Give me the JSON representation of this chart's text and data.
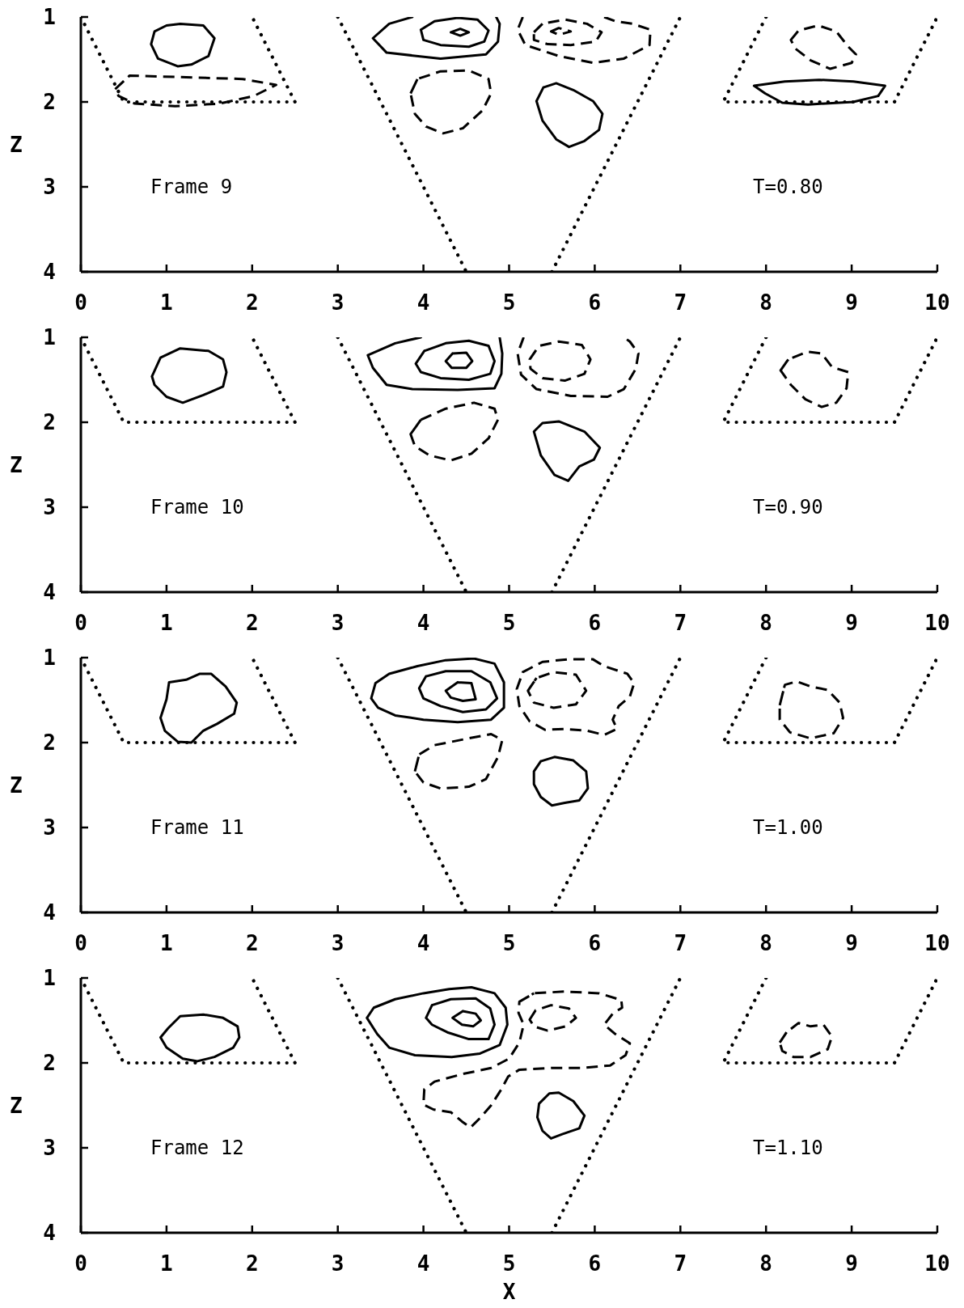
{
  "chart_data": [
    {
      "type": "line",
      "ylabel": "Z",
      "xlim": [
        0,
        10
      ],
      "xticks": [
        0,
        1,
        2,
        3,
        4,
        5,
        6,
        7,
        8,
        9,
        10
      ],
      "ylim": [
        4,
        1
      ],
      "yticks": [
        1,
        2,
        3,
        4
      ],
      "marker": "none",
      "annotations": [
        "Frame 9",
        "T=0.80"
      ],
      "series": [
        {
          "x": [
            0,
            0.5,
            2.5,
            2
          ],
          "values": [
            1,
            2,
            2,
            1
          ],
          "line_style": "dotted",
          "color": "#000000"
        },
        {
          "x": [
            3,
            4.5
          ],
          "values": [
            1,
            4
          ],
          "line_style": "dotted",
          "color": "#000000"
        },
        {
          "x": [
            5.5,
            7
          ],
          "values": [
            4,
            1
          ],
          "line_style": "dotted",
          "color": "#000000"
        },
        {
          "x": [
            8,
            7.5,
            9.5,
            10
          ],
          "values": [
            1,
            2,
            2,
            1
          ],
          "line_style": "dotted",
          "color": "#000000"
        },
        {
          "x": [
            1.16,
            1.43,
            1.56,
            1.49,
            1.29,
            1.13,
            0.9,
            0.82,
            0.86,
            1.0,
            1.16,
            1.43
          ],
          "values": [
            1.08,
            1.1,
            1.25,
            1.46,
            1.56,
            1.58,
            1.49,
            1.32,
            1.17,
            1.1,
            1.08,
            1.1
          ],
          "line_style": "solid",
          "color": "#000000"
        },
        {
          "x": [
            0.4,
            0.57,
            1.23,
            1.89,
            2.28,
            2.02,
            1.62,
            1.1,
            0.63,
            0.44,
            0.4,
            0.57
          ],
          "values": [
            1.85,
            1.69,
            1.71,
            1.73,
            1.8,
            1.93,
            2.02,
            2.05,
            2.02,
            1.93,
            1.85,
            1.69
          ],
          "line_style": "dashed",
          "color": "#000000"
        },
        {
          "x": [
            3.87,
            3.6,
            3.41,
            3.57,
            4.2,
            4.73,
            4.87,
            4.89,
            4.85
          ],
          "values": [
            1.0,
            1.08,
            1.25,
            1.42,
            1.49,
            1.44,
            1.29,
            1.08,
            1.0
          ],
          "line_style": "solid",
          "color": "#000000"
        },
        {
          "x": [
            3.97,
            4.13,
            4.4,
            4.63,
            4.76,
            4.71,
            4.53,
            4.2,
            4.0,
            3.97,
            4.13
          ],
          "values": [
            1.15,
            1.05,
            1.01,
            1.03,
            1.16,
            1.29,
            1.35,
            1.33,
            1.27,
            1.15,
            1.05
          ],
          "line_style": "solid",
          "color": "#000000"
        },
        {
          "x": [
            4.32,
            4.43,
            4.53,
            4.43,
            4.32,
            4.43
          ],
          "values": [
            1.18,
            1.14,
            1.18,
            1.22,
            1.18,
            1.14
          ],
          "line_style": "solid",
          "color": "#000000"
        },
        {
          "x": [
            5.16,
            5.1,
            5.19,
            5.58,
            5.98,
            6.34,
            6.64,
            6.65,
            6.44,
            6.24,
            6.11
          ],
          "values": [
            1.0,
            1.15,
            1.33,
            1.46,
            1.54,
            1.49,
            1.33,
            1.15,
            1.08,
            1.05,
            1.0
          ],
          "line_style": "dashed",
          "color": "#000000"
        },
        {
          "x": [
            5.29,
            5.39,
            5.65,
            5.91,
            6.08,
            6.01,
            5.72,
            5.45,
            5.29,
            5.29,
            5.39
          ],
          "values": [
            1.18,
            1.08,
            1.03,
            1.08,
            1.18,
            1.29,
            1.33,
            1.32,
            1.27,
            1.18,
            1.08
          ],
          "line_style": "dashed",
          "color": "#000000"
        },
        {
          "x": [
            5.49,
            5.58,
            5.72,
            5.58,
            5.49,
            5.58
          ],
          "values": [
            1.17,
            1.13,
            1.17,
            1.21,
            1.17,
            1.13
          ],
          "line_style": "dashed",
          "color": "#000000"
        },
        {
          "x": [
            3.85,
            3.93,
            4.2,
            4.53,
            4.76,
            4.79,
            4.69,
            4.46,
            4.23,
            4.03,
            3.9,
            3.85,
            3.93
          ],
          "values": [
            1.9,
            1.73,
            1.64,
            1.63,
            1.73,
            1.9,
            2.1,
            2.31,
            2.37,
            2.29,
            2.14,
            1.9,
            1.73
          ],
          "line_style": "dashed",
          "color": "#000000"
        },
        {
          "x": [
            5.32,
            5.4,
            5.55,
            5.75,
            5.98,
            6.09,
            6.05,
            5.88,
            5.7,
            5.55,
            5.39,
            5.32,
            5.4
          ],
          "values": [
            1.99,
            1.83,
            1.78,
            1.86,
            1.99,
            2.14,
            2.33,
            2.46,
            2.53,
            2.44,
            2.22,
            1.99,
            1.83
          ],
          "line_style": "solid",
          "color": "#000000"
        },
        {
          "x": [
            8.29,
            8.38,
            8.61,
            8.82,
            8.96,
            9.05,
            9.0,
            8.75,
            8.52,
            8.34,
            8.29,
            8.38
          ],
          "values": [
            1.27,
            1.16,
            1.1,
            1.17,
            1.35,
            1.44,
            1.54,
            1.61,
            1.51,
            1.37,
            1.27,
            1.16
          ],
          "line_style": "dashed",
          "color": "#000000"
        },
        {
          "x": [
            7.86,
            8.22,
            8.62,
            9.02,
            9.39,
            9.31,
            9.02,
            8.49,
            8.19,
            7.99,
            7.86,
            8.22
          ],
          "values": [
            1.81,
            1.76,
            1.74,
            1.76,
            1.81,
            1.93,
            2.0,
            2.03,
            2.01,
            1.9,
            1.81,
            1.76
          ],
          "line_style": "solid",
          "color": "#000000"
        }
      ]
    },
    {
      "type": "line",
      "ylabel": "Z",
      "xlim": [
        0,
        10
      ],
      "xticks": [
        0,
        1,
        2,
        3,
        4,
        5,
        6,
        7,
        8,
        9,
        10
      ],
      "ylim": [
        4,
        1
      ],
      "yticks": [
        1,
        2,
        3,
        4
      ],
      "marker": "none",
      "annotations": [
        "Frame 10",
        "T=0.90"
      ],
      "series": [
        {
          "x": [
            0,
            0.5,
            2.5,
            2
          ],
          "values": [
            1,
            2,
            2,
            1
          ],
          "line_style": "dotted",
          "color": "#000000"
        },
        {
          "x": [
            3,
            4.5
          ],
          "values": [
            1,
            4
          ],
          "line_style": "dotted",
          "color": "#000000"
        },
        {
          "x": [
            5.5,
            7
          ],
          "values": [
            4,
            1
          ],
          "line_style": "dotted",
          "color": "#000000"
        },
        {
          "x": [
            8,
            7.5,
            9.5,
            10
          ],
          "values": [
            1,
            2,
            2,
            1
          ],
          "line_style": "dotted",
          "color": "#000000"
        },
        {
          "x": [
            0.83,
            0.93,
            1.16,
            1.49,
            1.66,
            1.7,
            1.66,
            1.43,
            1.19,
            1.0,
            0.86,
            0.83,
            0.93
          ],
          "values": [
            1.46,
            1.24,
            1.13,
            1.16,
            1.26,
            1.41,
            1.58,
            1.68,
            1.77,
            1.7,
            1.56,
            1.46,
            1.24
          ],
          "line_style": "solid",
          "color": "#000000"
        },
        {
          "x": [
            3.97,
            3.67,
            3.35,
            3.41,
            3.57,
            3.87,
            4.4,
            4.83,
            4.91,
            4.92,
            4.89
          ],
          "values": [
            1.0,
            1.07,
            1.21,
            1.36,
            1.56,
            1.61,
            1.62,
            1.6,
            1.43,
            1.19,
            1.0
          ],
          "line_style": "solid",
          "color": "#000000"
        },
        {
          "x": [
            3.91,
            4.01,
            4.26,
            4.53,
            4.76,
            4.83,
            4.78,
            4.53,
            4.2,
            3.97,
            3.91,
            4.01
          ],
          "values": [
            1.31,
            1.16,
            1.07,
            1.04,
            1.1,
            1.28,
            1.43,
            1.5,
            1.48,
            1.41,
            1.31,
            1.16
          ],
          "line_style": "solid",
          "color": "#000000"
        },
        {
          "x": [
            4.26,
            4.34,
            4.5,
            4.57,
            4.5,
            4.33,
            4.26,
            4.34
          ],
          "values": [
            1.28,
            1.19,
            1.18,
            1.28,
            1.36,
            1.36,
            1.28,
            1.19
          ],
          "line_style": "solid",
          "color": "#000000"
        },
        {
          "x": [
            5.17,
            5.1,
            5.14,
            5.32,
            5.72,
            6.15,
            6.34,
            6.48,
            6.51,
            6.41,
            6.34
          ],
          "values": [
            1.0,
            1.19,
            1.44,
            1.61,
            1.69,
            1.7,
            1.61,
            1.37,
            1.19,
            1.05,
            1.0
          ],
          "line_style": "dashed",
          "color": "#000000"
        },
        {
          "x": [
            5.24,
            5.35,
            5.58,
            5.85,
            5.95,
            5.88,
            5.65,
            5.39,
            5.25,
            5.24,
            5.35
          ],
          "values": [
            1.26,
            1.1,
            1.05,
            1.09,
            1.26,
            1.43,
            1.51,
            1.48,
            1.37,
            1.26,
            1.1
          ],
          "line_style": "dashed",
          "color": "#000000"
        },
        {
          "x": [
            3.85,
            3.97,
            4.26,
            4.59,
            4.83,
            4.87,
            4.76,
            4.56,
            4.32,
            4.07,
            3.9,
            3.85,
            3.97
          ],
          "values": [
            2.14,
            1.97,
            1.84,
            1.77,
            1.84,
            1.97,
            2.19,
            2.37,
            2.45,
            2.39,
            2.28,
            2.14,
            1.97
          ],
          "line_style": "dashed",
          "color": "#000000"
        },
        {
          "x": [
            5.29,
            5.39,
            5.58,
            5.88,
            6.06,
            5.99,
            5.82,
            5.69,
            5.53,
            5.37,
            5.29,
            5.39
          ],
          "values": [
            2.11,
            2.01,
            1.99,
            2.11,
            2.3,
            2.44,
            2.52,
            2.69,
            2.62,
            2.39,
            2.11,
            2.01
          ],
          "line_style": "solid",
          "color": "#000000"
        },
        {
          "x": [
            8.17,
            8.26,
            8.48,
            8.65,
            8.77,
            8.96,
            8.94,
            8.82,
            8.65,
            8.46,
            8.29,
            8.17,
            8.26
          ],
          "values": [
            1.39,
            1.26,
            1.17,
            1.19,
            1.35,
            1.41,
            1.6,
            1.77,
            1.82,
            1.73,
            1.56,
            1.39,
            1.26
          ],
          "line_style": "dashed",
          "color": "#000000"
        }
      ]
    },
    {
      "type": "line",
      "ylabel": "Z",
      "xlim": [
        0,
        10
      ],
      "xticks": [
        0,
        1,
        2,
        3,
        4,
        5,
        6,
        7,
        8,
        9,
        10
      ],
      "ylim": [
        4,
        1
      ],
      "yticks": [
        1,
        2,
        3,
        4
      ],
      "marker": "none",
      "annotations": [
        "Frame 11",
        "T=1.00"
      ],
      "series": [
        {
          "x": [
            0,
            0.5,
            2.5,
            2
          ],
          "values": [
            1,
            2,
            2,
            1
          ],
          "line_style": "dotted",
          "color": "#000000"
        },
        {
          "x": [
            3,
            4.5
          ],
          "values": [
            1,
            4
          ],
          "line_style": "dotted",
          "color": "#000000"
        },
        {
          "x": [
            5.5,
            7
          ],
          "values": [
            4,
            1
          ],
          "line_style": "dotted",
          "color": "#000000"
        },
        {
          "x": [
            8,
            7.5,
            9.5,
            10
          ],
          "values": [
            1,
            2,
            2,
            1
          ],
          "line_style": "dotted",
          "color": "#000000"
        },
        {
          "x": [
            1.03,
            1.23,
            1.39,
            1.52,
            1.69,
            1.82,
            1.79,
            1.59,
            1.43,
            1.29,
            1.13,
            0.98,
            0.93,
            1.0,
            1.03,
            1.23
          ],
          "values": [
            1.29,
            1.26,
            1.19,
            1.19,
            1.34,
            1.53,
            1.66,
            1.78,
            1.86,
            2.0,
            1.99,
            1.86,
            1.71,
            1.49,
            1.29,
            1.26
          ],
          "line_style": "solid",
          "color": "#000000"
        },
        {
          "x": [
            3.39,
            3.44,
            3.6,
            3.93,
            4.26,
            4.59,
            4.83,
            4.94,
            4.94,
            4.79,
            4.4,
            4.0,
            3.67,
            3.47,
            3.39,
            3.44
          ],
          "values": [
            1.48,
            1.3,
            1.19,
            1.1,
            1.03,
            1.01,
            1.07,
            1.29,
            1.59,
            1.73,
            1.76,
            1.73,
            1.68,
            1.59,
            1.48,
            1.3
          ],
          "line_style": "solid",
          "color": "#000000"
        },
        {
          "x": [
            3.95,
            4.03,
            4.26,
            4.56,
            4.78,
            4.86,
            4.73,
            4.46,
            4.2,
            4.0,
            3.95,
            4.03
          ],
          "values": [
            1.36,
            1.22,
            1.16,
            1.16,
            1.29,
            1.48,
            1.61,
            1.64,
            1.57,
            1.48,
            1.36,
            1.22
          ],
          "line_style": "solid",
          "color": "#000000"
        },
        {
          "x": [
            4.26,
            4.4,
            4.56,
            4.61,
            4.46,
            4.32,
            4.26,
            4.4
          ],
          "values": [
            1.39,
            1.29,
            1.3,
            1.49,
            1.51,
            1.47,
            1.39,
            1.29
          ],
          "line_style": "solid",
          "color": "#000000"
        },
        {
          "x": [
            5.09,
            5.16,
            5.39,
            5.68,
            5.98,
            6.11,
            6.38,
            6.46,
            6.41,
            6.28,
            6.21,
            6.26,
            6.11,
            5.91,
            5.65,
            5.42,
            5.24,
            5.12,
            5.09,
            5.16
          ],
          "values": [
            1.37,
            1.17,
            1.05,
            1.02,
            1.02,
            1.1,
            1.19,
            1.3,
            1.46,
            1.57,
            1.73,
            1.84,
            1.91,
            1.86,
            1.84,
            1.85,
            1.75,
            1.57,
            1.37,
            1.17
          ],
          "line_style": "dashed",
          "color": "#000000"
        },
        {
          "x": [
            5.22,
            5.32,
            5.52,
            5.78,
            5.9,
            5.78,
            5.52,
            5.29,
            5.22,
            5.32
          ],
          "values": [
            1.39,
            1.24,
            1.17,
            1.2,
            1.39,
            1.55,
            1.59,
            1.53,
            1.39,
            1.24
          ],
          "line_style": "dashed",
          "color": "#000000"
        },
        {
          "x": [
            3.9,
            3.95,
            4.13,
            4.53,
            4.79,
            4.92,
            4.87,
            4.73,
            4.53,
            4.2,
            4.0,
            3.9,
            3.95
          ],
          "values": [
            2.34,
            2.14,
            2.03,
            1.95,
            1.9,
            1.97,
            2.17,
            2.43,
            2.52,
            2.54,
            2.47,
            2.34,
            2.14
          ],
          "line_style": "dashed",
          "color": "#000000"
        },
        {
          "x": [
            5.29,
            5.37,
            5.53,
            5.75,
            5.9,
            5.92,
            5.82,
            5.65,
            5.5,
            5.37,
            5.29,
            5.29,
            5.37
          ],
          "values": [
            2.34,
            2.22,
            2.17,
            2.21,
            2.34,
            2.54,
            2.68,
            2.71,
            2.74,
            2.64,
            2.49,
            2.34,
            2.22
          ],
          "line_style": "solid",
          "color": "#000000"
        },
        {
          "x": [
            8.16,
            8.22,
            8.36,
            8.52,
            8.72,
            8.86,
            8.9,
            8.79,
            8.52,
            8.28,
            8.16,
            8.16,
            8.22
          ],
          "values": [
            1.56,
            1.32,
            1.28,
            1.34,
            1.38,
            1.53,
            1.71,
            1.89,
            1.95,
            1.88,
            1.73,
            1.56,
            1.32
          ],
          "line_style": "dashed",
          "color": "#000000"
        }
      ]
    },
    {
      "type": "line",
      "xlabel": "X",
      "ylabel": "Z",
      "xlim": [
        0,
        10
      ],
      "xticks": [
        0,
        1,
        2,
        3,
        4,
        5,
        6,
        7,
        8,
        9,
        10
      ],
      "ylim": [
        4,
        1
      ],
      "yticks": [
        1,
        2,
        3,
        4
      ],
      "marker": "none",
      "annotations": [
        "Frame 12",
        "T=1.10"
      ],
      "series": [
        {
          "x": [
            0,
            0.5,
            2.5,
            2
          ],
          "values": [
            1,
            2,
            2,
            1
          ],
          "line_style": "dotted",
          "color": "#000000"
        },
        {
          "x": [
            3,
            4.5
          ],
          "values": [
            1,
            4
          ],
          "line_style": "dotted",
          "color": "#000000"
        },
        {
          "x": [
            5.5,
            7
          ],
          "values": [
            4,
            1
          ],
          "line_style": "dotted",
          "color": "#000000"
        },
        {
          "x": [
            8,
            7.5,
            9.5,
            10
          ],
          "values": [
            1,
            2,
            2,
            1
          ],
          "line_style": "dotted",
          "color": "#000000"
        },
        {
          "x": [
            0.93,
            1.02,
            1.16,
            1.43,
            1.66,
            1.83,
            1.85,
            1.78,
            1.56,
            1.36,
            1.19,
            1.0,
            0.93,
            1.02
          ],
          "values": [
            1.7,
            1.59,
            1.45,
            1.43,
            1.47,
            1.57,
            1.7,
            1.82,
            1.93,
            1.98,
            1.95,
            1.82,
            1.7,
            1.59
          ],
          "line_style": "solid",
          "color": "#000000"
        },
        {
          "x": [
            3.34,
            3.42,
            3.67,
            4.0,
            4.3,
            4.56,
            4.83,
            4.96,
            4.98,
            4.89,
            4.66,
            4.33,
            3.9,
            3.6,
            3.46,
            3.34,
            3.42
          ],
          "values": [
            1.47,
            1.35,
            1.25,
            1.18,
            1.13,
            1.11,
            1.18,
            1.35,
            1.55,
            1.79,
            1.89,
            1.93,
            1.91,
            1.82,
            1.66,
            1.47,
            1.35
          ],
          "line_style": "solid",
          "color": "#000000"
        },
        {
          "x": [
            4.03,
            4.1,
            4.32,
            4.61,
            4.78,
            4.83,
            4.76,
            4.53,
            4.28,
            4.1,
            4.03,
            4.1
          ],
          "values": [
            1.47,
            1.32,
            1.25,
            1.24,
            1.36,
            1.55,
            1.72,
            1.72,
            1.64,
            1.55,
            1.47,
            1.32
          ],
          "line_style": "solid",
          "color": "#000000"
        },
        {
          "x": [
            4.34,
            4.46,
            4.61,
            4.67,
            4.58,
            4.45,
            4.34,
            4.46
          ],
          "values": [
            1.47,
            1.39,
            1.42,
            1.5,
            1.57,
            1.55,
            1.47,
            1.39
          ],
          "line_style": "solid",
          "color": "#000000"
        },
        {
          "x": [
            5.12,
            5.29,
            5.65,
            6.05,
            6.31,
            6.32,
            6.21,
            6.11,
            6.24,
            6.41,
            6.36,
            6.18,
            5.85,
            5.49,
            5.12,
            4.99,
            4.91,
            4.79,
            4.66,
            4.55,
            4.45,
            4.32,
            4.12,
            4.0,
            4.01,
            4.13,
            4.46,
            4.79,
            5.0,
            5.12,
            5.17,
            5.11,
            5.12,
            5.29
          ],
          "values": [
            1.28,
            1.18,
            1.16,
            1.18,
            1.26,
            1.35,
            1.42,
            1.55,
            1.66,
            1.77,
            1.91,
            2.03,
            2.06,
            2.06,
            2.08,
            2.16,
            2.31,
            2.5,
            2.65,
            2.76,
            2.69,
            2.58,
            2.55,
            2.49,
            2.31,
            2.22,
            2.13,
            2.06,
            1.95,
            1.76,
            1.55,
            1.41,
            1.28,
            1.18
          ],
          "line_style": "dashed",
          "color": "#000000"
        },
        {
          "x": [
            5.24,
            5.31,
            5.49,
            5.7,
            5.78,
            5.66,
            5.45,
            5.29,
            5.24,
            5.31
          ],
          "values": [
            1.49,
            1.38,
            1.32,
            1.36,
            1.47,
            1.57,
            1.62,
            1.57,
            1.49,
            1.38
          ],
          "line_style": "dashed",
          "color": "#000000"
        },
        {
          "x": [
            5.35,
            5.47,
            5.58,
            5.75,
            5.88,
            5.82,
            5.62,
            5.49,
            5.39,
            5.33,
            5.35,
            5.47
          ],
          "values": [
            2.48,
            2.36,
            2.35,
            2.45,
            2.62,
            2.77,
            2.84,
            2.89,
            2.8,
            2.64,
            2.48,
            2.36
          ],
          "line_style": "solid",
          "color": "#000000"
        },
        {
          "x": [
            8.16,
            8.24,
            8.38,
            8.52,
            8.67,
            8.77,
            8.72,
            8.52,
            8.32,
            8.19,
            8.16,
            8.24
          ],
          "values": [
            1.76,
            1.64,
            1.53,
            1.57,
            1.55,
            1.69,
            1.84,
            1.93,
            1.93,
            1.86,
            1.76,
            1.64
          ],
          "line_style": "dashed",
          "color": "#000000"
        }
      ]
    }
  ]
}
